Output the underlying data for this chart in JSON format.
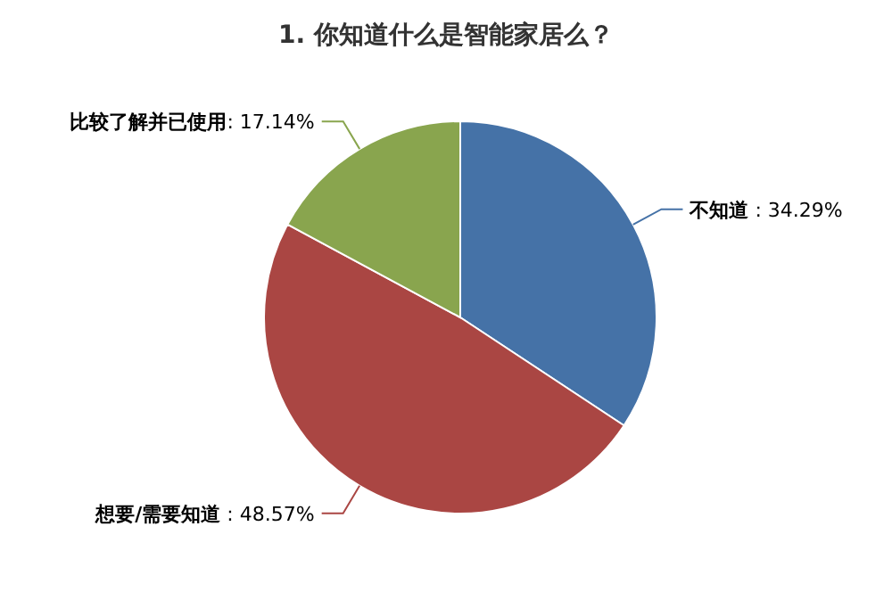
{
  "chart_data": {
    "type": "pie",
    "title": "1. 你知道什么是智能家居么？",
    "categories": [
      "不知道",
      "想要/需要知道",
      "比较了解并已使用"
    ],
    "values": [
      34.29,
      48.57,
      17.14
    ],
    "value_labels": [
      " : 34.29%",
      " : 48.57%",
      ": 17.14%"
    ],
    "colors": [
      "#4572a7",
      "#aa4643",
      "#89a54e"
    ]
  }
}
